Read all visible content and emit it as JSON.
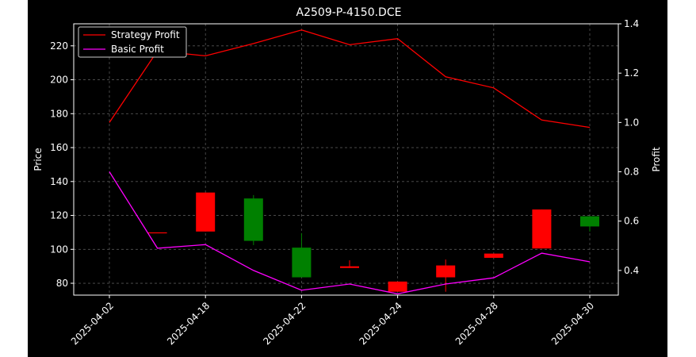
{
  "chart_data": {
    "type": "candlestick",
    "title": "A2509-P-4150.DCE",
    "xlabel": "",
    "ylabel": "Price",
    "y2label": "Profit",
    "x_tick_labels": [
      "2025-04-02",
      "2025-04-18",
      "2025-04-22",
      "2025-04-24",
      "2025-04-28",
      "2025-04-30"
    ],
    "x_tick_indices": [
      0,
      2,
      4,
      6,
      8,
      10
    ],
    "ylim": [
      73,
      233
    ],
    "y_ticks": [
      80,
      100,
      120,
      140,
      160,
      180,
      200,
      220
    ],
    "y2lim": [
      0.3,
      1.4
    ],
    "y2_ticks": [
      0.4,
      0.6,
      0.8,
      1.0,
      1.2,
      1.4
    ],
    "grid": true,
    "legend_position": "upper-left",
    "candles": [
      {
        "index": 1,
        "open": 110.0,
        "high": 110.0,
        "low": 110.0,
        "close": 110.0,
        "color": "#ff0000"
      },
      {
        "index": 2,
        "open": 133.5,
        "high": 133.5,
        "low": 110.5,
        "close": 110.5,
        "color": "#ff0000"
      },
      {
        "index": 3,
        "open": 105.0,
        "high": 132.0,
        "low": 102.5,
        "close": 130.0,
        "color": "#008000"
      },
      {
        "index": 4,
        "open": 83.5,
        "high": 109.5,
        "low": 83.5,
        "close": 101.0,
        "color": "#008000"
      },
      {
        "index": 5,
        "open": 90.0,
        "high": 93.5,
        "low": 89.0,
        "close": 89.0,
        "color": "#ff0000"
      },
      {
        "index": 6,
        "open": 81.0,
        "high": 81.0,
        "low": 75.0,
        "close": 75.0,
        "color": "#ff0000"
      },
      {
        "index": 7,
        "open": 90.5,
        "high": 94.0,
        "low": 75.0,
        "close": 83.5,
        "color": "#ff0000"
      },
      {
        "index": 8,
        "open": 97.5,
        "high": 97.5,
        "low": 95.0,
        "close": 95.0,
        "color": "#ff0000"
      },
      {
        "index": 9,
        "open": 123.5,
        "high": 123.5,
        "low": 100.5,
        "close": 100.5,
        "color": "#ff0000"
      },
      {
        "index": 10,
        "open": 113.5,
        "high": 119.5,
        "low": 110.5,
        "close": 119.5,
        "color": "#008000"
      }
    ],
    "series": [
      {
        "name": "Strategy Profit",
        "color": "#ff0000",
        "axis": "right",
        "x": [
          0,
          1,
          2,
          3,
          4,
          5,
          6,
          7,
          8,
          9,
          10
        ],
        "values": [
          1.0,
          1.29,
          1.27,
          1.32,
          1.375,
          1.315,
          1.34,
          1.185,
          1.14,
          1.01,
          0.98
        ]
      },
      {
        "name": "Basic Profit",
        "color": "#ff00ff",
        "axis": "right",
        "x": [
          0,
          1,
          2,
          3,
          4,
          5,
          6,
          7,
          8,
          9,
          10
        ],
        "values": [
          0.8,
          0.49,
          0.505,
          0.4,
          0.32,
          0.345,
          0.305,
          0.345,
          0.37,
          0.47,
          0.435
        ]
      }
    ],
    "colors": {
      "background": "#000000",
      "axes": "#ffffff",
      "grid": "#555555"
    }
  }
}
